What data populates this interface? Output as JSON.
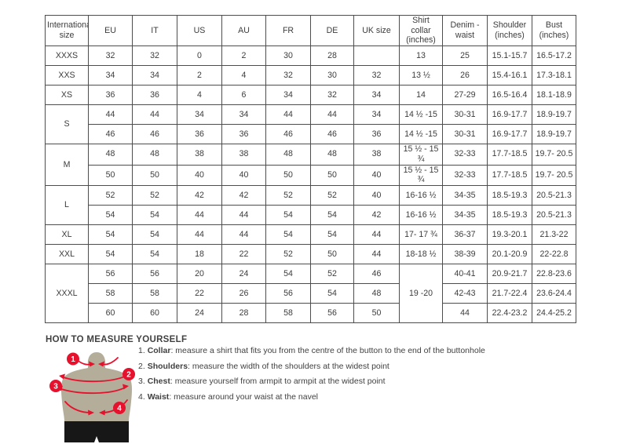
{
  "table": {
    "headers": [
      "International size",
      "EU",
      "IT",
      "US",
      "AU",
      "FR",
      "DE",
      "UK size",
      "Shirt collar (inches)",
      "Denim - waist",
      "Shoulder (inches)",
      "Bust (inches)"
    ],
    "rows": [
      [
        {
          "t": "XXXS"
        },
        {
          "t": "32"
        },
        {
          "t": "32"
        },
        {
          "t": "0"
        },
        {
          "t": "2"
        },
        {
          "t": "30"
        },
        {
          "t": "28"
        },
        {
          "t": ""
        },
        {
          "t": "13"
        },
        {
          "t": "25"
        },
        {
          "t": "15.1-15.7"
        },
        {
          "t": "16.5-17.2"
        }
      ],
      [
        {
          "t": "XXS"
        },
        {
          "t": "34"
        },
        {
          "t": "34"
        },
        {
          "t": "2"
        },
        {
          "t": "4"
        },
        {
          "t": "32"
        },
        {
          "t": "30"
        },
        {
          "t": "32"
        },
        {
          "t": "13 ½"
        },
        {
          "t": "26"
        },
        {
          "t": "15.4-16.1"
        },
        {
          "t": "17.3-18.1"
        }
      ],
      [
        {
          "t": "XS"
        },
        {
          "t": "36"
        },
        {
          "t": "36"
        },
        {
          "t": "4"
        },
        {
          "t": "6"
        },
        {
          "t": "34"
        },
        {
          "t": "32"
        },
        {
          "t": "34"
        },
        {
          "t": "14"
        },
        {
          "t": "27-29"
        },
        {
          "t": "16.5-16.4"
        },
        {
          "t": "18.1-18.9"
        }
      ],
      [
        {
          "t": "S",
          "rs": 2
        },
        {
          "t": "44"
        },
        {
          "t": "44"
        },
        {
          "t": "34"
        },
        {
          "t": "34"
        },
        {
          "t": "44"
        },
        {
          "t": "44"
        },
        {
          "t": "34"
        },
        {
          "t": "14 ½ -15"
        },
        {
          "t": "30-31"
        },
        {
          "t": "16.9-17.7"
        },
        {
          "t": "18.9-19.7"
        }
      ],
      [
        {
          "t": "46"
        },
        {
          "t": "46"
        },
        {
          "t": "36"
        },
        {
          "t": "36"
        },
        {
          "t": "46"
        },
        {
          "t": "46"
        },
        {
          "t": "36"
        },
        {
          "t": "14 ½ -15"
        },
        {
          "t": "30-31"
        },
        {
          "t": "16.9-17.7"
        },
        {
          "t": "18.9-19.7"
        }
      ],
      [
        {
          "t": "M",
          "rs": 2
        },
        {
          "t": "48"
        },
        {
          "t": "48"
        },
        {
          "t": "38"
        },
        {
          "t": "38"
        },
        {
          "t": "48"
        },
        {
          "t": "48"
        },
        {
          "t": "38"
        },
        {
          "t": "15 ½ - 15 ¾"
        },
        {
          "t": "32-33"
        },
        {
          "t": "17.7-18.5"
        },
        {
          "t": "19.7- 20.5"
        }
      ],
      [
        {
          "t": "50"
        },
        {
          "t": "50"
        },
        {
          "t": "40"
        },
        {
          "t": "40"
        },
        {
          "t": "50"
        },
        {
          "t": "50"
        },
        {
          "t": "40"
        },
        {
          "t": "15 ½ - 15 ¾"
        },
        {
          "t": "32-33"
        },
        {
          "t": "17.7-18.5"
        },
        {
          "t": "19.7- 20.5"
        }
      ],
      [
        {
          "t": "L",
          "rs": 2
        },
        {
          "t": "52"
        },
        {
          "t": "52"
        },
        {
          "t": "42"
        },
        {
          "t": "42"
        },
        {
          "t": "52"
        },
        {
          "t": "52"
        },
        {
          "t": "40"
        },
        {
          "t": "16-16 ½"
        },
        {
          "t": "34-35"
        },
        {
          "t": "18.5-19.3"
        },
        {
          "t": "20.5-21.3"
        }
      ],
      [
        {
          "t": "54"
        },
        {
          "t": "54"
        },
        {
          "t": "44"
        },
        {
          "t": "44"
        },
        {
          "t": "54"
        },
        {
          "t": "54"
        },
        {
          "t": "42"
        },
        {
          "t": "16-16 ½"
        },
        {
          "t": "34-35"
        },
        {
          "t": "18.5-19.3"
        },
        {
          "t": "20.5-21.3"
        }
      ],
      [
        {
          "t": "XL"
        },
        {
          "t": "54"
        },
        {
          "t": "54"
        },
        {
          "t": "44"
        },
        {
          "t": "44"
        },
        {
          "t": "54"
        },
        {
          "t": "54"
        },
        {
          "t": "44"
        },
        {
          "t": "17- 17 ¾"
        },
        {
          "t": "36-37"
        },
        {
          "t": "19.3-20.1"
        },
        {
          "t": "21.3-22"
        }
      ],
      [
        {
          "t": "XXL"
        },
        {
          "t": "54"
        },
        {
          "t": "54"
        },
        {
          "t": "18"
        },
        {
          "t": "22"
        },
        {
          "t": "52"
        },
        {
          "t": "50"
        },
        {
          "t": "44"
        },
        {
          "t": "18-18 ½"
        },
        {
          "t": "38-39"
        },
        {
          "t": "20.1-20.9"
        },
        {
          "t": "22-22.8"
        }
      ],
      [
        {
          "t": "XXXL",
          "rs": 3
        },
        {
          "t": "56"
        },
        {
          "t": "56"
        },
        {
          "t": "20"
        },
        {
          "t": "24"
        },
        {
          "t": "54"
        },
        {
          "t": "52"
        },
        {
          "t": "46"
        },
        {
          "t": "19 -20",
          "rs": 3
        },
        {
          "t": "40-41"
        },
        {
          "t": "20.9-21.7"
        },
        {
          "t": "22.8-23.6"
        }
      ],
      [
        {
          "t": "58"
        },
        {
          "t": "58"
        },
        {
          "t": "22"
        },
        {
          "t": "26"
        },
        {
          "t": "56"
        },
        {
          "t": "54"
        },
        {
          "t": "48"
        },
        {
          "t": "42-43"
        },
        {
          "t": "21.7-22.4"
        },
        {
          "t": "23.6-24.4"
        }
      ],
      [
        {
          "t": "60"
        },
        {
          "t": "60"
        },
        {
          "t": "24"
        },
        {
          "t": "28"
        },
        {
          "t": "58"
        },
        {
          "t": "56"
        },
        {
          "t": "50"
        },
        {
          "t": "44"
        },
        {
          "t": "22.4-23.2"
        },
        {
          "t": "24.4-25.2"
        }
      ]
    ]
  },
  "how_to": {
    "title": "HOW TO MEASURE YOURSELF",
    "items": [
      {
        "num": "1.",
        "label": "Collar",
        "text": ": measure a shirt that fits you from the centre of the button to the end of the buttonhole"
      },
      {
        "num": "2.",
        "label": "Shoulders",
        "text": ": measure the width of the shoulders at the widest point"
      },
      {
        "num": "3.",
        "label": "Chest",
        "text": ": measure yourself from armpit to armpit at the widest point"
      },
      {
        "num": "4.",
        "label": "Waist",
        "text": ": measure around your waist at the navel"
      }
    ]
  },
  "figure": {
    "markers": [
      "1",
      "2",
      "3",
      "4"
    ]
  },
  "colors": {
    "accent_red": "#e5112d",
    "mannequin_body": "#b3ad9a",
    "mannequin_shorts": "#171717",
    "table_border": "#4d4d4d",
    "text": "#3c3c3c"
  }
}
